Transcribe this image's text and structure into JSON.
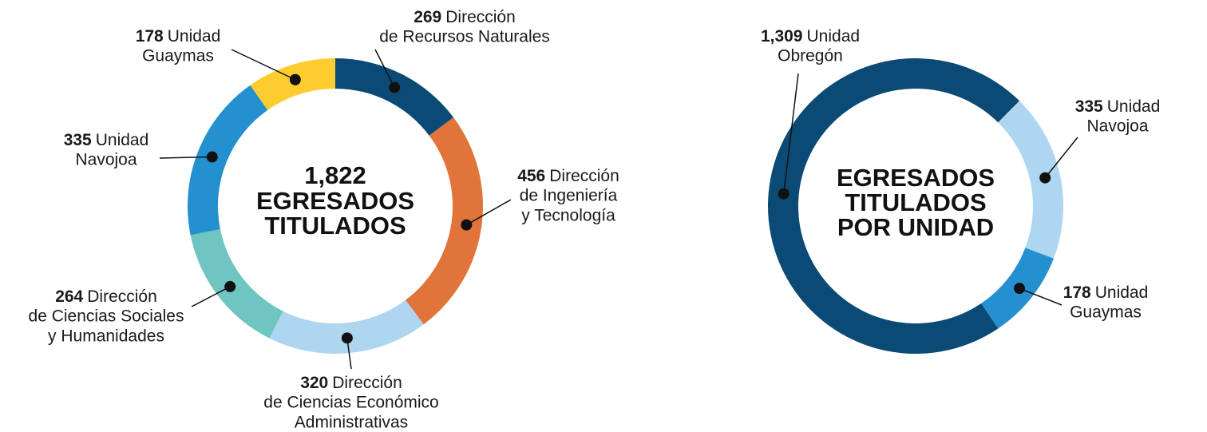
{
  "chart_data": [
    {
      "type": "donut",
      "center_total": {
        "value": 1822,
        "label": "1,822"
      },
      "center_title": [
        "EGRESADOS",
        "TITULADOS"
      ],
      "categories": [
        [
          "Dirección",
          "de Recursos Naturales"
        ],
        [
          "Dirección",
          "de Ingeniería",
          "y Tecnología"
        ],
        [
          "Dirección",
          "de Ciencias Económico",
          "Administrativas"
        ],
        [
          "Dirección",
          "de Ciencias Sociales",
          "y Humanidades"
        ],
        [
          "Unidad",
          "Navojoa"
        ],
        [
          "Unidad",
          "Guaymas"
        ]
      ],
      "values": [
        269,
        456,
        320,
        264,
        335,
        178
      ],
      "colors": [
        "#0b4a75",
        "#e0743a",
        "#aed6f0",
        "#6fc5c0",
        "#2590d0",
        "#fdcc2e"
      ]
    },
    {
      "type": "donut",
      "center_title": [
        "EGRESADOS",
        "TITULADOS",
        "POR UNIDAD"
      ],
      "categories": [
        [
          "Unidad",
          "Obregón"
        ],
        [
          "Unidad",
          "Navojoa"
        ],
        [
          "Unidad",
          "Guaymas"
        ]
      ],
      "values": [
        1309,
        335,
        178
      ],
      "value_labels": [
        "1,309",
        "335",
        "178"
      ],
      "colors": [
        "#0b4a75",
        "#aed6f0",
        "#2590d0"
      ]
    }
  ]
}
